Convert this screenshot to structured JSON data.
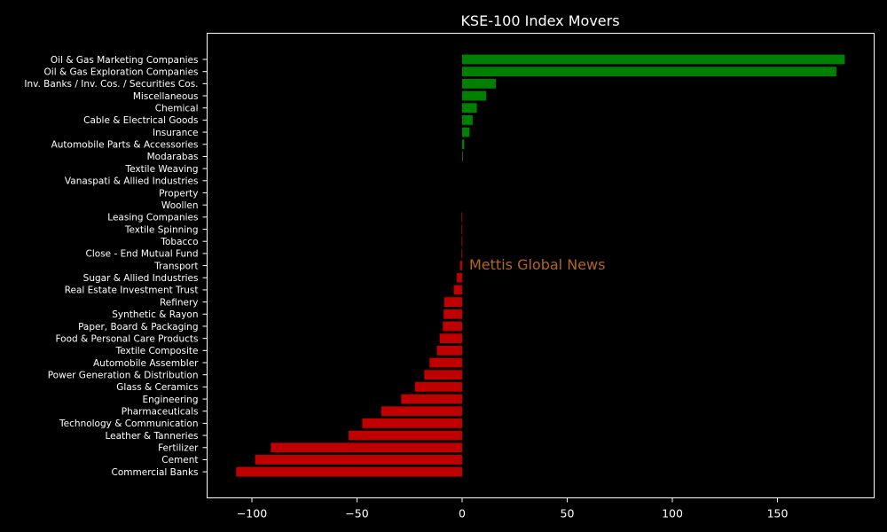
{
  "chart_data": {
    "type": "bar",
    "orientation": "horizontal",
    "title": "KSE-100 Index Movers",
    "xlabel": "",
    "ylabel": "",
    "xlim": [
      -107,
      182
    ],
    "xticks": [
      -100,
      -50,
      0,
      50,
      100,
      150
    ],
    "xtick_labels": [
      "−100",
      "−50",
      "0",
      "50",
      "100",
      "150"
    ],
    "grid": false,
    "watermark": "Mettis Global News",
    "colors": {
      "background": "#000000",
      "positive": "#008000",
      "negative": "#c00000",
      "axis": "#ffffff",
      "text": "#ffffff",
      "watermark": "#b5651d"
    },
    "categories": [
      "Oil & Gas Marketing Companies",
      "Oil & Gas Exploration Companies",
      "Inv. Banks / Inv. Cos. / Securities Cos.",
      "Miscellaneous",
      "Chemical",
      "Cable & Electrical Goods",
      "Insurance",
      "Automobile Parts & Accessories",
      "Modarabas",
      "Textile Weaving",
      "Vanaspati & Allied Industries",
      "Property",
      "Woollen",
      "Leasing Companies",
      "Textile Spinning",
      "Tobacco",
      "Close - End Mutual Fund",
      "Transport",
      "Sugar & Allied Industries",
      "Real Estate Investment Trust",
      "Refinery",
      "Synthetic & Rayon",
      "Paper, Board & Packaging",
      "Food & Personal Care Products",
      "Textile Composite",
      "Automobile Assembler",
      "Power Generation & Distribution",
      "Glass & Ceramics",
      "Engineering",
      "Pharmaceuticals",
      "Technology & Communication",
      "Leather & Tanneries",
      "Fertilizer",
      "Cement",
      "Commercial Banks"
    ],
    "values": [
      182,
      178,
      16,
      11.5,
      7,
      5,
      3.5,
      1,
      0.4,
      0,
      0,
      0,
      0,
      -0.3,
      -0.3,
      -0.3,
      -0.3,
      -1,
      -2.5,
      -4,
      -8.5,
      -8.8,
      -9.2,
      -10.7,
      -12,
      -15.5,
      -18,
      -22.5,
      -29,
      -38.5,
      -47.5,
      -54,
      -91,
      -98.5,
      -107.5
    ]
  }
}
